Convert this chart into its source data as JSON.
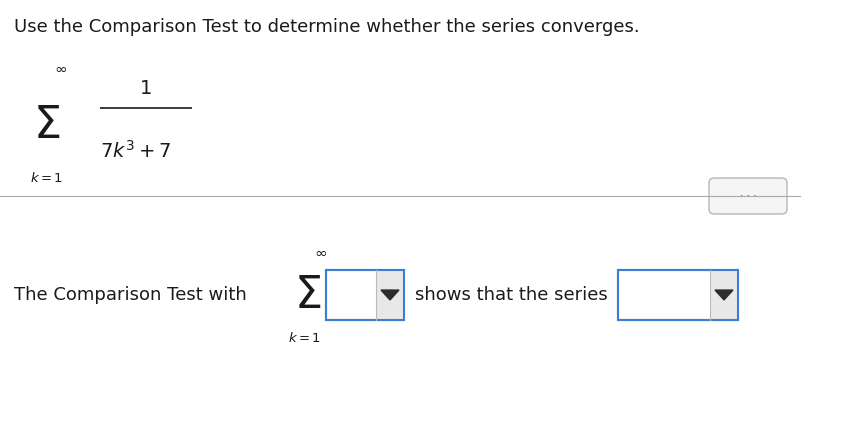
{
  "bg_color": "#ffffff",
  "text_color": "#1a1a1a",
  "title_text": "Use the Comparison Test to determine whether the series converges.",
  "title_fontsize": 13.0,
  "sigma_fontsize": 32,
  "inf_fontsize": 11,
  "k1_fontsize": 9.5,
  "num_fontsize": 14,
  "denom_fontsize": 14,
  "body_fontsize": 13.0,
  "dot_color": "#555555",
  "divider_color": "#aaaaaa",
  "dropdown_border_color": "#3a7fd4",
  "dropdown_lw": 1.5,
  "sep_color": "#bbbbbb",
  "arrow_color": "#2c2c2c",
  "dots_pill_edge": "#b0b0b0",
  "dots_pill_face": "#f5f5f5"
}
